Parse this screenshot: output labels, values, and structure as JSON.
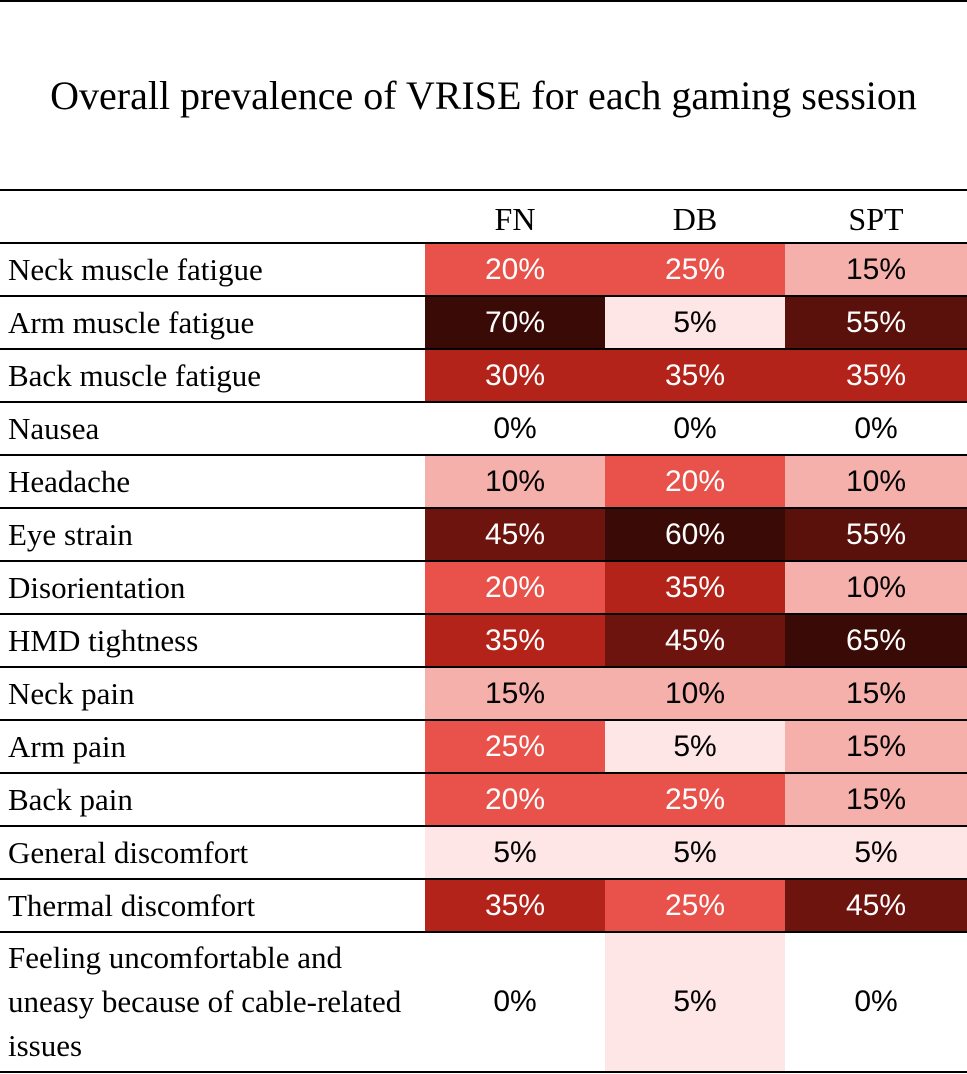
{
  "chart_data": {
    "type": "heatmap",
    "title": "Overall prevalence of VRISE for each gaming session",
    "columns": [
      "FN",
      "DB",
      "SPT"
    ],
    "rows": [
      "Neck muscle fatigue",
      "Arm muscle fatigue",
      "Back muscle fatigue",
      "Nausea",
      "Headache",
      "Eye strain",
      "Disorientation",
      "HMD tightness",
      "Neck pain",
      "Arm pain",
      "Back pain",
      "General discomfort",
      "Thermal discomfort",
      "Feeling uncomfortable and uneasy because of cable-related issues"
    ],
    "values": [
      [
        20,
        25,
        15
      ],
      [
        70,
        5,
        55
      ],
      [
        30,
        35,
        35
      ],
      [
        0,
        0,
        0
      ],
      [
        10,
        20,
        10
      ],
      [
        45,
        60,
        55
      ],
      [
        20,
        35,
        10
      ],
      [
        35,
        45,
        65
      ],
      [
        15,
        10,
        15
      ],
      [
        25,
        5,
        15
      ],
      [
        20,
        25,
        15
      ],
      [
        5,
        5,
        5
      ],
      [
        35,
        25,
        45
      ],
      [
        0,
        5,
        0
      ]
    ],
    "value_suffix": "%",
    "color_scale": {
      "0": "#ffffff",
      "5": "#fde6e5",
      "10": "#f5b0ab",
      "15": "#f5b0ab",
      "20": "#e8524a",
      "25": "#e8524a",
      "30": "#b3231a",
      "35": "#b3231a",
      "45": "#6d140e",
      "55": "#5a110b",
      "60": "#3a0a07",
      "65": "#3a0a07",
      "70": "#3a0a07"
    },
    "text_dark": "#000000",
    "text_light": "#ffffff"
  }
}
